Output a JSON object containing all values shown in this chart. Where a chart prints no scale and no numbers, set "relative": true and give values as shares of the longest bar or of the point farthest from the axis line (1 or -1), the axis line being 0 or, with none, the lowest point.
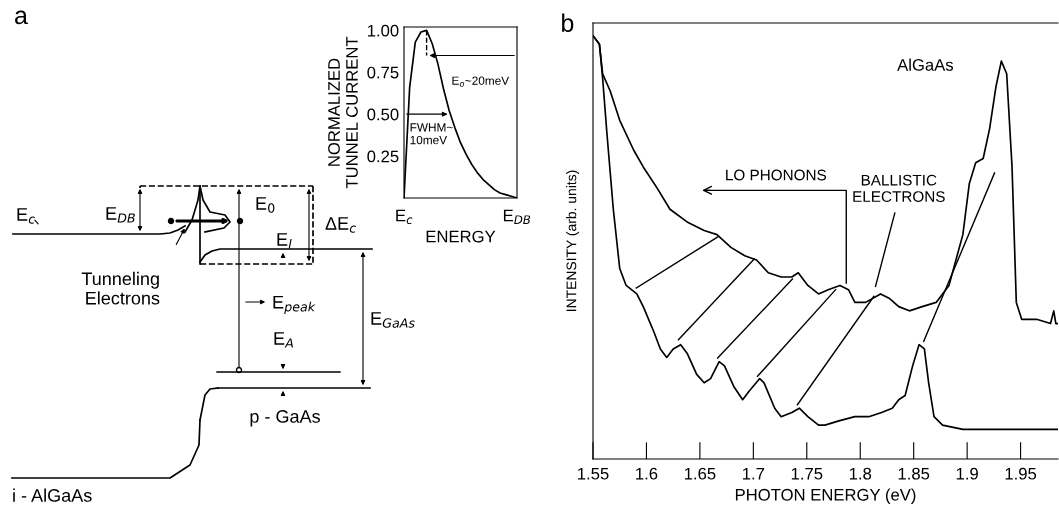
{
  "chart_data": [
    {
      "type": "other",
      "title": "a",
      "annotations": [
        "E$_{c}$",
        "E$_{DB}$",
        "E$_{0}$",
        "ΔE$_{c}$",
        "E$_{l}$",
        "Tunneling\nElectrons",
        "E$_{peak}$",
        "E$_{GaAs}$",
        "E$_{A}$",
        "p - GaAs",
        "i - AlGaAs"
      ]
    },
    {
      "type": "line",
      "xlabel": "ENERGY",
      "ylabel": "NORMALIZED\nTUNNEL CURRENT",
      "categories": [
        "E$_{c}$",
        null,
        null,
        null,
        null,
        null,
        null,
        null,
        null,
        null,
        null,
        null,
        null,
        null,
        null,
        null,
        null,
        null,
        null,
        null,
        "E$_{DB}$"
      ],
      "series": [
        {
          "color": "#000000",
          "values": [
            0,
            0.66,
            0.93,
            0.99,
            1.0,
            0.92,
            0.8,
            0.65,
            0.52,
            0.42,
            0.33,
            0.26,
            0.2,
            0.15,
            0.11,
            0.08,
            0.05,
            0.03,
            0.02,
            0.01,
            0
          ]
        }
      ],
      "ylim": [
        0,
        1.02
      ],
      "yticks": [
        0.25,
        {
          "value": 0.5,
          "label": "0.50"
        },
        0.75,
        {
          "value": 1.0,
          "label": "1.00"
        }
      ],
      "annotations": [
        "E$_{o}$~20meV",
        "FWHM~\n10meV"
      ]
    },
    {
      "type": "line",
      "title": "b",
      "xlabel": "PHOTON ENERGY (eV)",
      "ylabel": "INTENSITY (arb. units)",
      "relative": true,
      "tick_labels": "x",
      "xlim": [
        1.55,
        1.985
      ],
      "xticks": [
        1.55,
        1.6,
        1.65,
        1.7,
        1.75,
        1.8,
        1.85,
        1.9,
        1.95
      ],
      "series": [
        {
          "color": "#000000",
          "x": [
            1.55,
            1.556,
            1.559,
            1.566,
            1.575,
            1.588,
            1.597,
            1.61,
            1.622,
            1.638,
            1.654,
            1.666,
            1.679,
            1.692,
            1.703,
            1.714,
            1.726,
            1.736,
            1.742,
            1.751,
            1.761,
            1.77,
            1.781,
            1.789,
            1.795,
            1.805,
            1.819,
            1.827,
            1.836,
            1.846,
            1.858,
            1.871,
            1.883,
            1.896,
            1.902,
            1.908,
            1.915,
            1.921,
            1.927,
            1.932,
            1.937,
            1.942,
            1.946,
            1.951,
            1.965,
            1.978,
            1.981,
            1.983,
            1.985
          ],
          "values": [
            1.0,
            0.98,
            0.91,
            0.87,
            0.8,
            0.73,
            0.69,
            0.64,
            0.59,
            0.56,
            0.54,
            0.53,
            0.5,
            0.48,
            0.47,
            0.44,
            0.43,
            0.43,
            0.44,
            0.41,
            0.39,
            0.4,
            0.41,
            0.4,
            0.37,
            0.37,
            0.39,
            0.38,
            0.36,
            0.35,
            0.36,
            0.37,
            0.41,
            0.53,
            0.65,
            0.7,
            0.71,
            0.78,
            0.88,
            0.94,
            0.91,
            0.69,
            0.37,
            0.33,
            0.33,
            0.32,
            0.35,
            0.32,
            0.32
          ]
        },
        {
          "color": "#000000",
          "x": [
            1.55,
            1.556,
            1.559,
            1.563,
            1.569,
            1.575,
            1.581,
            1.591,
            1.597,
            1.607,
            1.613,
            1.619,
            1.625,
            1.632,
            1.638,
            1.647,
            1.654,
            1.66,
            1.668,
            1.673,
            1.682,
            1.69,
            1.696,
            1.706,
            1.71,
            1.72,
            1.726,
            1.736,
            1.743,
            1.751,
            1.761,
            1.767,
            1.78,
            1.795,
            1.808,
            1.82,
            1.83,
            1.836,
            1.842,
            1.849,
            1.855,
            1.86,
            1.864,
            1.869,
            1.877,
            1.896,
            1.927,
            1.985
          ],
          "values": [
            1.0,
            0.98,
            0.9,
            0.77,
            0.59,
            0.45,
            0.41,
            0.39,
            0.36,
            0.3,
            0.26,
            0.24,
            0.26,
            0.27,
            0.25,
            0.2,
            0.18,
            0.19,
            0.23,
            0.22,
            0.17,
            0.14,
            0.16,
            0.19,
            0.18,
            0.12,
            0.1,
            0.11,
            0.12,
            0.1,
            0.08,
            0.08,
            0.09,
            0.1,
            0.1,
            0.11,
            0.12,
            0.14,
            0.15,
            0.22,
            0.27,
            0.26,
            0.18,
            0.1,
            0.08,
            0.07,
            0.07,
            0.07
          ]
        }
      ],
      "annotations": [
        "AlGaAs",
        "LO PHONONS",
        "BALLISTIC\nELECTRONS"
      ]
    }
  ]
}
